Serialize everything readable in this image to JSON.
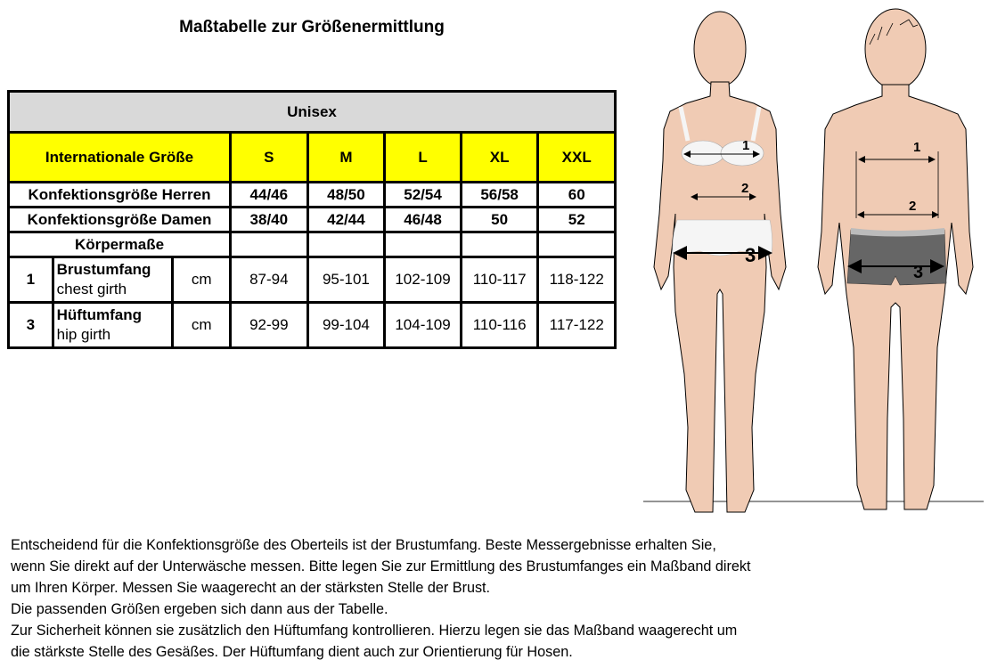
{
  "title": "Maßtabelle zur Größenermittlung",
  "table": {
    "group": "Unisex",
    "header_label": "Internationale Größe",
    "sizes": [
      "S",
      "M",
      "L",
      "XL",
      "XXL"
    ],
    "herren": {
      "label": "Konfektionsgröße Herren",
      "values": [
        "44/46",
        "48/50",
        "52/54",
        "56/58",
        "60"
      ]
    },
    "damen": {
      "label": "Konfektionsgröße Damen",
      "values": [
        "38/40",
        "42/44",
        "46/48",
        "50",
        "52"
      ]
    },
    "body_label": "Körpermaße",
    "rows": [
      {
        "num": "1",
        "name": "Brustumfang",
        "name_en": "chest girth",
        "unit": "cm",
        "values": [
          "87-94",
          "95-101",
          "102-109",
          "110-117",
          "118-122"
        ]
      },
      {
        "num": "3",
        "name": "Hüftumfang",
        "name_en": "hip girth",
        "unit": "cm",
        "values": [
          "92-99",
          "99-104",
          "104-109",
          "110-116",
          "117-122"
        ]
      }
    ]
  },
  "figure": {
    "labels": [
      "1",
      "2",
      "3"
    ],
    "colors": {
      "skin": "#f0cbb4",
      "shorts": "#666666",
      "underwear": "#f5f5f5"
    }
  },
  "text": [
    "Entscheidend für die Konfektionsgröße des Oberteils ist der Brustumfang. Beste Messergebnisse erhalten Sie,",
    "wenn Sie direkt auf der Unterwäsche messen. Bitte legen Sie zur Ermittlung des Brustumfanges ein Maßband direkt",
    "um Ihren Körper. Messen Sie waagerecht an der stärksten Stelle der Brust.",
    "Die passenden Größen ergeben sich dann aus der Tabelle.",
    "Zur Sicherheit können sie zusätzlich den Hüftumfang kontrollieren. Hierzu legen sie das Maßband waagerecht um",
    "die stärkste Stelle des Gesäßes. Der Hüftumfang dient auch zur Orientierung für Hosen."
  ]
}
